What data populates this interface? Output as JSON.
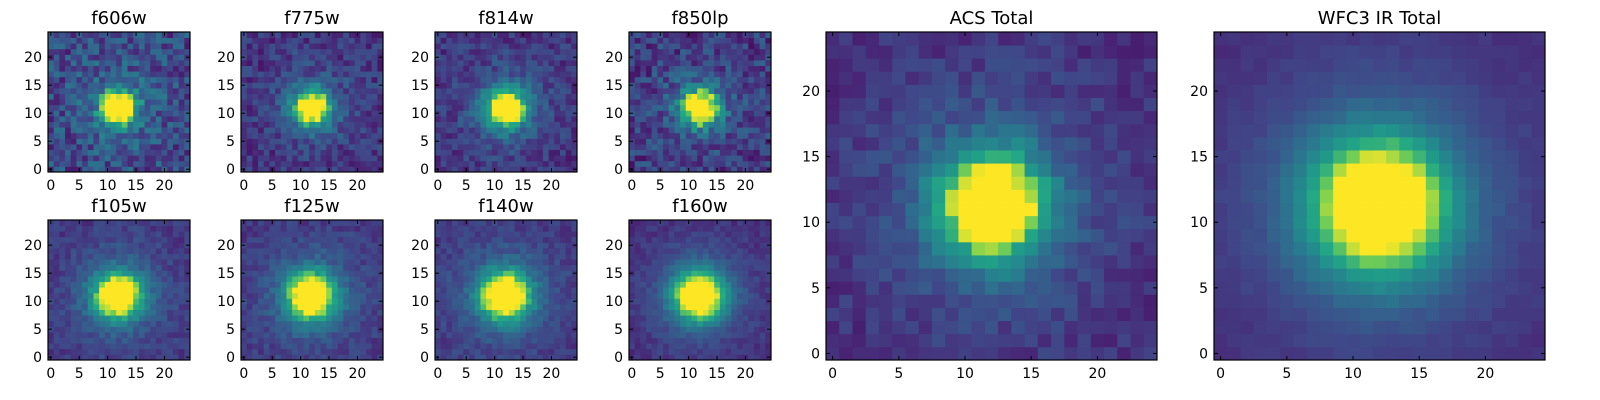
{
  "chart_data": [
    {
      "type": "heatmap",
      "title": "f606w",
      "xlim": [
        0,
        25
      ],
      "ylim": [
        0,
        25
      ],
      "xticks": [
        "0",
        "5",
        "10",
        "15",
        "20"
      ],
      "yticks": [
        "0",
        "5",
        "10",
        "15",
        "20"
      ],
      "grid": false,
      "colormap": "viridis",
      "grid_size": 25,
      "source_center": [
        12.5,
        11.5
      ],
      "source_width": 2.0,
      "background_level": 0.28,
      "noise_level": 0.38
    },
    {
      "type": "heatmap",
      "title": "f775w",
      "xlim": [
        0,
        25
      ],
      "ylim": [
        0,
        25
      ],
      "xticks": [
        "0",
        "5",
        "10",
        "15",
        "20"
      ],
      "yticks": [
        "0",
        "5",
        "10",
        "15",
        "20"
      ],
      "grid": false,
      "colormap": "viridis",
      "grid_size": 25,
      "source_center": [
        12.5,
        11.5
      ],
      "source_width": 2.1,
      "background_level": 0.2,
      "noise_level": 0.26
    },
    {
      "type": "heatmap",
      "title": "f814w",
      "xlim": [
        0,
        25
      ],
      "ylim": [
        0,
        25
      ],
      "xticks": [
        "0",
        "5",
        "10",
        "15",
        "20"
      ],
      "yticks": [
        "0",
        "5",
        "10",
        "15",
        "20"
      ],
      "grid": false,
      "colormap": "viridis",
      "grid_size": 25,
      "source_center": [
        12.5,
        11.5
      ],
      "source_width": 2.3,
      "background_level": 0.2,
      "noise_level": 0.24
    },
    {
      "type": "heatmap",
      "title": "f850lp",
      "xlim": [
        0,
        25
      ],
      "ylim": [
        0,
        25
      ],
      "xticks": [
        "0",
        "5",
        "10",
        "15",
        "20"
      ],
      "yticks": [
        "0",
        "5",
        "10",
        "15",
        "20"
      ],
      "grid": false,
      "colormap": "viridis",
      "grid_size": 25,
      "source_center": [
        12.5,
        11.5
      ],
      "source_width": 2.1,
      "background_level": 0.22,
      "noise_level": 0.34
    },
    {
      "type": "heatmap",
      "title": "f105w",
      "xlim": [
        0,
        25
      ],
      "ylim": [
        0,
        25
      ],
      "xticks": [
        "0",
        "5",
        "10",
        "15",
        "20"
      ],
      "yticks": [
        "0",
        "5",
        "10",
        "15",
        "20"
      ],
      "grid": false,
      "colormap": "viridis",
      "grid_size": 25,
      "source_center": [
        12.3,
        11.5
      ],
      "source_width": 2.8,
      "background_level": 0.2,
      "noise_level": 0.16
    },
    {
      "type": "heatmap",
      "title": "f125w",
      "xlim": [
        0,
        25
      ],
      "ylim": [
        0,
        25
      ],
      "xticks": [
        "0",
        "5",
        "10",
        "15",
        "20"
      ],
      "yticks": [
        "0",
        "5",
        "10",
        "15",
        "20"
      ],
      "grid": false,
      "colormap": "viridis",
      "grid_size": 25,
      "source_center": [
        12.3,
        11.5
      ],
      "source_width": 2.9,
      "background_level": 0.2,
      "noise_level": 0.16
    },
    {
      "type": "heatmap",
      "title": "f140w",
      "xlim": [
        0,
        25
      ],
      "ylim": [
        0,
        25
      ],
      "xticks": [
        "0",
        "5",
        "10",
        "15",
        "20"
      ],
      "yticks": [
        "0",
        "5",
        "10",
        "15",
        "20"
      ],
      "grid": false,
      "colormap": "viridis",
      "grid_size": 25,
      "source_center": [
        12.3,
        11.5
      ],
      "source_width": 3.0,
      "background_level": 0.2,
      "noise_level": 0.15
    },
    {
      "type": "heatmap",
      "title": "f160w",
      "xlim": [
        0,
        25
      ],
      "ylim": [
        0,
        25
      ],
      "xticks": [
        "0",
        "5",
        "10",
        "15",
        "20"
      ],
      "yticks": [
        "0",
        "5",
        "10",
        "15",
        "20"
      ],
      "grid": false,
      "colormap": "viridis",
      "grid_size": 25,
      "source_center": [
        12.3,
        11.5
      ],
      "source_width": 3.1,
      "background_level": 0.16,
      "noise_level": 0.12
    },
    {
      "type": "heatmap",
      "title": "ACS Total",
      "xlim": [
        0,
        25
      ],
      "ylim": [
        0,
        25
      ],
      "xticks": [
        "0",
        "5",
        "10",
        "15",
        "20"
      ],
      "yticks": [
        "0",
        "5",
        "10",
        "15",
        "20"
      ],
      "grid": false,
      "colormap": "viridis",
      "grid_size": 25,
      "source_center": [
        12.5,
        11.8
      ],
      "source_width": 2.8,
      "background_level": 0.17,
      "noise_level": 0.16
    },
    {
      "type": "heatmap",
      "title": "WFC3 IR Total",
      "xlim": [
        0,
        25
      ],
      "ylim": [
        0,
        25
      ],
      "xticks": [
        "0",
        "5",
        "10",
        "15",
        "20"
      ],
      "yticks": [
        "0",
        "5",
        "10",
        "15",
        "20"
      ],
      "grid": false,
      "colormap": "viridis",
      "grid_size": 25,
      "source_center": [
        12.5,
        11.8
      ],
      "source_width": 3.8,
      "background_level": 0.14,
      "noise_level": 0.05
    }
  ]
}
